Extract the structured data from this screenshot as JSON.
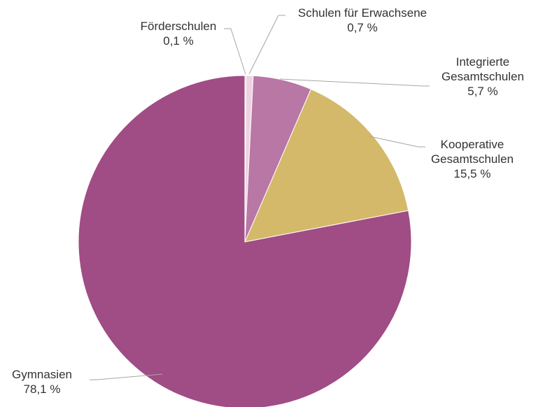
{
  "chart_data": {
    "type": "pie",
    "categories": [
      "Förderschulen",
      "Schulen für Erwachsene",
      "Integrierte Gesamtschulen",
      "Kooperative Gesamtschulen",
      "Gymnasien"
    ],
    "values": [
      0.1,
      0.7,
      5.7,
      15.5,
      78.1
    ],
    "value_labels": [
      "0,1 %",
      "0,7 %",
      "5,7 %",
      "15,5 %",
      "78,1 %"
    ],
    "colors": [
      "#d99cbf",
      "#edd3e2",
      "#b877a5",
      "#d4b96a",
      "#a04c85"
    ]
  }
}
